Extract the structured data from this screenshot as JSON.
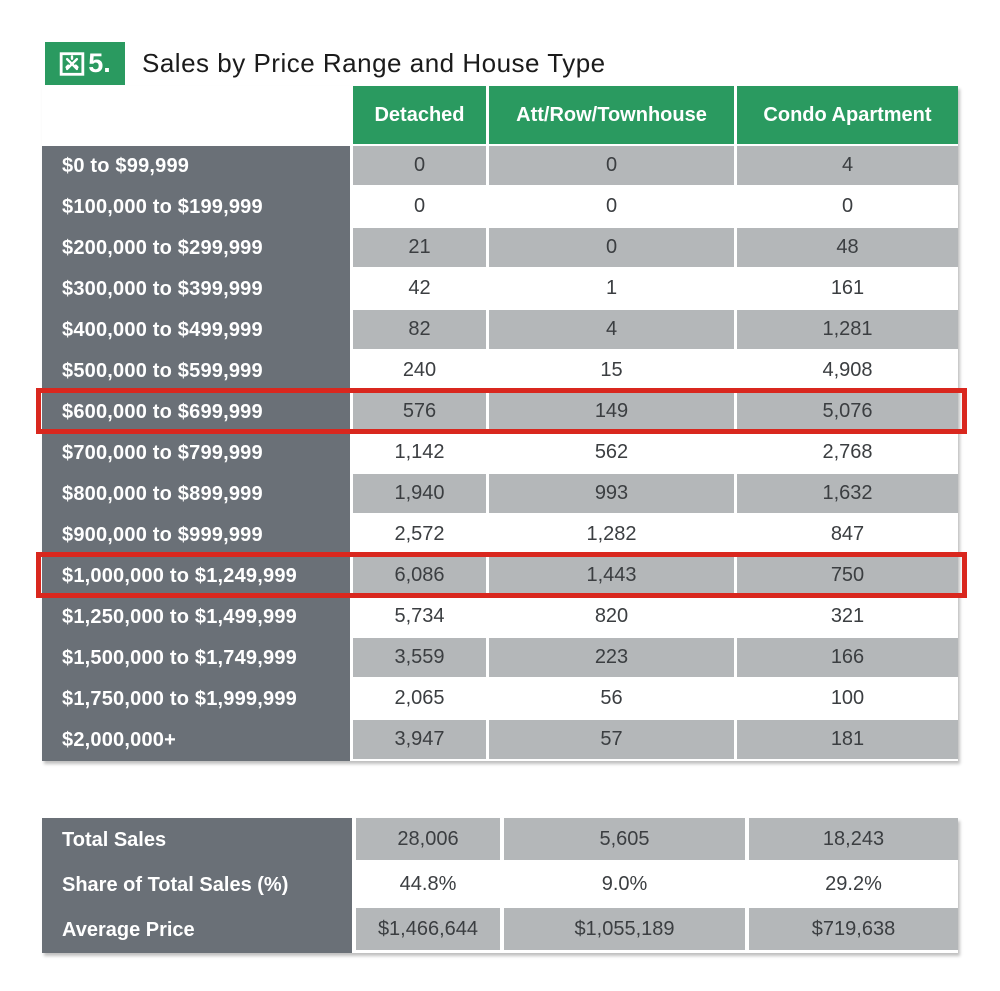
{
  "figure": {
    "badge": "図5.",
    "badge_number": "5.",
    "title": "Sales by Price Range and House Type"
  },
  "colors": {
    "header_green": "#2a9a60",
    "label_gray": "#6a7077",
    "stripe_gray": "#b4b7b9",
    "highlight_red": "#d9271e",
    "data_text": "#3b3e41"
  },
  "table": {
    "columns": [
      "Detached",
      "Att/Row/Townhouse",
      "Condo Apartment"
    ],
    "rows": [
      {
        "label": "$0 to $99,999",
        "values": [
          "0",
          "0",
          "4"
        ],
        "highlighted": false
      },
      {
        "label": "$100,000 to $199,999",
        "values": [
          "0",
          "0",
          "0"
        ],
        "highlighted": false
      },
      {
        "label": "$200,000 to $299,999",
        "values": [
          "21",
          "0",
          "48"
        ],
        "highlighted": false
      },
      {
        "label": "$300,000 to $399,999",
        "values": [
          "42",
          "1",
          "161"
        ],
        "highlighted": false
      },
      {
        "label": "$400,000 to $499,999",
        "values": [
          "82",
          "4",
          "1,281"
        ],
        "highlighted": false
      },
      {
        "label": "$500,000 to $599,999",
        "values": [
          "240",
          "15",
          "4,908"
        ],
        "highlighted": false
      },
      {
        "label": "$600,000 to $699,999",
        "values": [
          "576",
          "149",
          "5,076"
        ],
        "highlighted": true
      },
      {
        "label": "$700,000 to $799,999",
        "values": [
          "1,142",
          "562",
          "2,768"
        ],
        "highlighted": false
      },
      {
        "label": "$800,000 to $899,999",
        "values": [
          "1,940",
          "993",
          "1,632"
        ],
        "highlighted": false
      },
      {
        "label": "$900,000 to $999,999",
        "values": [
          "2,572",
          "1,282",
          "847"
        ],
        "highlighted": false
      },
      {
        "label": "$1,000,000 to $1,249,999",
        "values": [
          "6,086",
          "1,443",
          "750"
        ],
        "highlighted": true
      },
      {
        "label": "$1,250,000 to $1,499,999",
        "values": [
          "5,734",
          "820",
          "321"
        ],
        "highlighted": false
      },
      {
        "label": "$1,500,000 to $1,749,999",
        "values": [
          "3,559",
          "223",
          "166"
        ],
        "highlighted": false
      },
      {
        "label": "$1,750,000 to $1,999,999",
        "values": [
          "2,065",
          "56",
          "100"
        ],
        "highlighted": false
      },
      {
        "label": "$2,000,000+",
        "values": [
          "3,947",
          "57",
          "181"
        ],
        "highlighted": false
      }
    ]
  },
  "summary": {
    "rows": [
      {
        "label": "Total Sales",
        "values": [
          "28,006",
          "5,605",
          "18,243"
        ]
      },
      {
        "label": "Share of Total Sales (%)",
        "values": [
          "44.8%",
          "9.0%",
          "29.2%"
        ]
      },
      {
        "label": "Average Price",
        "values": [
          "$1,466,644",
          "$1,055,189",
          "$719,638"
        ]
      }
    ]
  },
  "chart_data": {
    "type": "table",
    "figure_label": "図5.",
    "title": "Sales by Price Range and House Type",
    "columns": [
      "Detached",
      "Att/Row/Townhouse",
      "Condo Apartment"
    ],
    "row_labels": [
      "$0 to $99,999",
      "$100,000 to $199,999",
      "$200,000 to $299,999",
      "$300,000 to $399,999",
      "$400,000 to $499,999",
      "$500,000 to $599,999",
      "$600,000 to $699,999",
      "$700,000 to $799,999",
      "$800,000 to $899,999",
      "$900,000 to $999,999",
      "$1,000,000 to $1,249,999",
      "$1,250,000 to $1,499,999",
      "$1,500,000 to $1,749,999",
      "$1,750,000 to $1,999,999",
      "$2,000,000+"
    ],
    "values": [
      [
        0,
        0,
        4
      ],
      [
        0,
        0,
        0
      ],
      [
        21,
        0,
        48
      ],
      [
        42,
        1,
        161
      ],
      [
        82,
        4,
        1281
      ],
      [
        240,
        15,
        4908
      ],
      [
        576,
        149,
        5076
      ],
      [
        1142,
        562,
        2768
      ],
      [
        1940,
        993,
        1632
      ],
      [
        2572,
        1282,
        847
      ],
      [
        6086,
        1443,
        750
      ],
      [
        5734,
        820,
        321
      ],
      [
        3559,
        223,
        166
      ],
      [
        2065,
        56,
        100
      ],
      [
        3947,
        57,
        181
      ]
    ],
    "highlighted_rows": [
      "$600,000 to $699,999",
      "$1,000,000 to $1,249,999"
    ],
    "summary": {
      "total_sales": [
        28006,
        5605,
        18243
      ],
      "share_of_total_sales_pct": [
        44.8,
        9.0,
        29.2
      ],
      "average_price": [
        "$1,466,644",
        "$1,055,189",
        "$719,638"
      ]
    }
  }
}
